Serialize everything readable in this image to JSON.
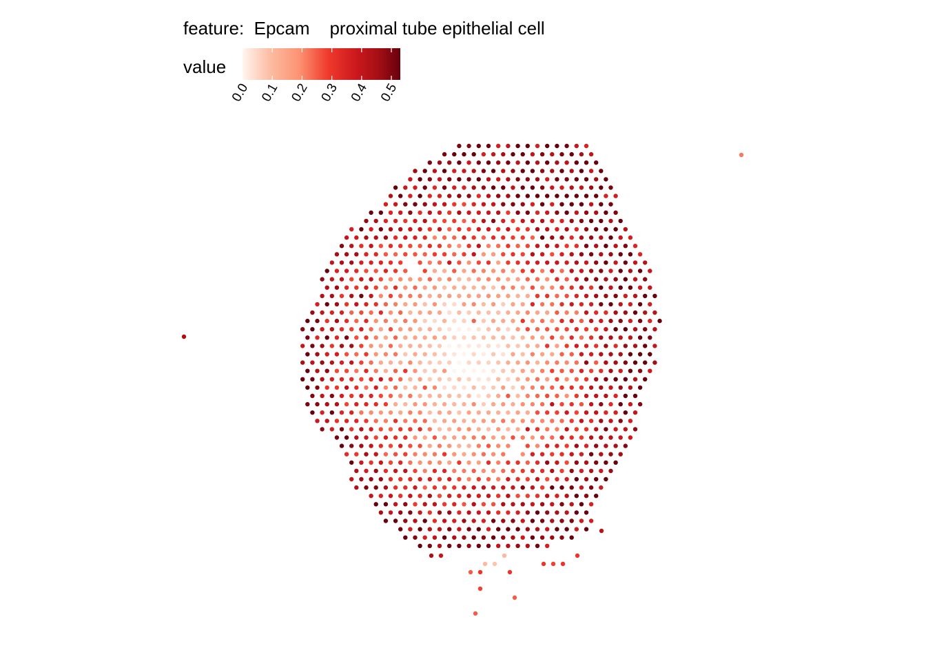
{
  "legend": {
    "feature_label": "feature:",
    "feature": "Epcam",
    "cell_type": "proximal tube epithelial cell",
    "value_label": "value"
  },
  "colors": {
    "low": "#fff5f0",
    "mid1": "#fcbba1",
    "mid2": "#fb6a4a",
    "mid3": "#ef3b2c",
    "mid4": "#cb181d",
    "high": "#67000d"
  },
  "chart_data": {
    "type": "scatter",
    "title": "",
    "xlabel": "",
    "ylabel": "",
    "color_scale": {
      "name": "value",
      "range": [
        0,
        0.53
      ],
      "ticks": [
        "0.0",
        "0.1",
        "0.2",
        "0.3",
        "0.4",
        "0.5"
      ]
    },
    "spot_grid": "hexagonal spatial spot array; ~55 rows of spots forming a roughly circular tissue section",
    "pattern": "low values (near 0.0) concentrated in the center of the section, increasing to 0.3-0.5 toward the periphery",
    "isolated_spots": [
      {
        "label": "left outlier",
        "value": 0.45
      },
      {
        "label": "top-right outlier",
        "value": 0.22
      }
    ]
  }
}
